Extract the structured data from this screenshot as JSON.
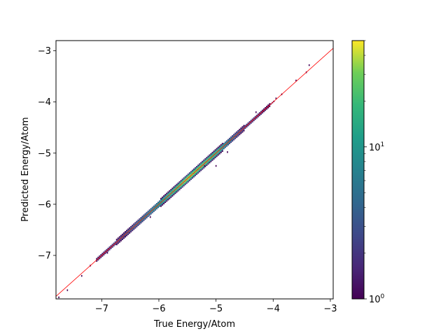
{
  "chart_data": {
    "type": "heatmap",
    "subtype": "2d-histogram parity plot (true vs predicted)",
    "xlabel": "True Energy/Atom",
    "ylabel": "Predicted Energy/Atom",
    "xlim": [
      -7.8,
      -2.95
    ],
    "ylim": [
      -7.85,
      -2.8
    ],
    "xticks": [
      -7,
      -6,
      -5,
      -4,
      -3
    ],
    "yticks": [
      -7,
      -6,
      -5,
      -4,
      -3
    ],
    "xtick_labels": [
      "−7",
      "−6",
      "−5",
      "−4",
      "−3"
    ],
    "ytick_labels": [
      "−7",
      "−6",
      "−5",
      "−4",
      "−3"
    ],
    "colormap": "viridis",
    "color_scale": "log",
    "colorbar": {
      "range": [
        1,
        50
      ],
      "ticks": [
        {
          "value": 1,
          "base": "10",
          "exp": "0"
        },
        {
          "value": 10,
          "base": "10",
          "exp": "1"
        }
      ]
    },
    "identity_line": {
      "color": "#ff0000",
      "from": [
        -7.8,
        -7.8
      ],
      "to": [
        -2.95,
        -2.95
      ]
    },
    "density_band": {
      "main_range": [
        -7.1,
        -4.0
      ],
      "peak_counts": [
        {
          "x": -7.0,
          "count": 2
        },
        {
          "x": -6.6,
          "count": 4
        },
        {
          "x": -6.3,
          "count": 8
        },
        {
          "x": -6.0,
          "count": 15
        },
        {
          "x": -5.7,
          "count": 30
        },
        {
          "x": -5.5,
          "count": 45
        },
        {
          "x": -5.3,
          "count": 35
        },
        {
          "x": -5.0,
          "count": 25
        },
        {
          "x": -4.8,
          "count": 10
        },
        {
          "x": -4.5,
          "count": 3
        },
        {
          "x": -4.2,
          "count": 2
        },
        {
          "x": -4.0,
          "count": 1
        }
      ]
    },
    "outliers": [
      {
        "x": -7.75,
        "y": -7.82,
        "count": 1
      },
      {
        "x": -7.6,
        "y": -7.68,
        "count": 1
      },
      {
        "x": -7.35,
        "y": -7.4,
        "count": 1
      },
      {
        "x": -7.2,
        "y": -7.2,
        "count": 1
      },
      {
        "x": -6.9,
        "y": -6.95,
        "count": 1
      },
      {
        "x": -6.15,
        "y": -6.25,
        "count": 1
      },
      {
        "x": -5.2,
        "y": -5.25,
        "count": 1
      },
      {
        "x": -5.0,
        "y": -5.25,
        "count": 1
      },
      {
        "x": -4.8,
        "y": -4.98,
        "count": 1
      },
      {
        "x": -4.3,
        "y": -4.2,
        "count": 1
      },
      {
        "x": -3.95,
        "y": -3.93,
        "count": 1
      },
      {
        "x": -3.85,
        "y": -3.85,
        "count": 1
      },
      {
        "x": -3.6,
        "y": -3.58,
        "count": 1
      },
      {
        "x": -3.42,
        "y": -3.42,
        "count": 1
      },
      {
        "x": -3.37,
        "y": -3.28,
        "count": 1
      }
    ]
  }
}
